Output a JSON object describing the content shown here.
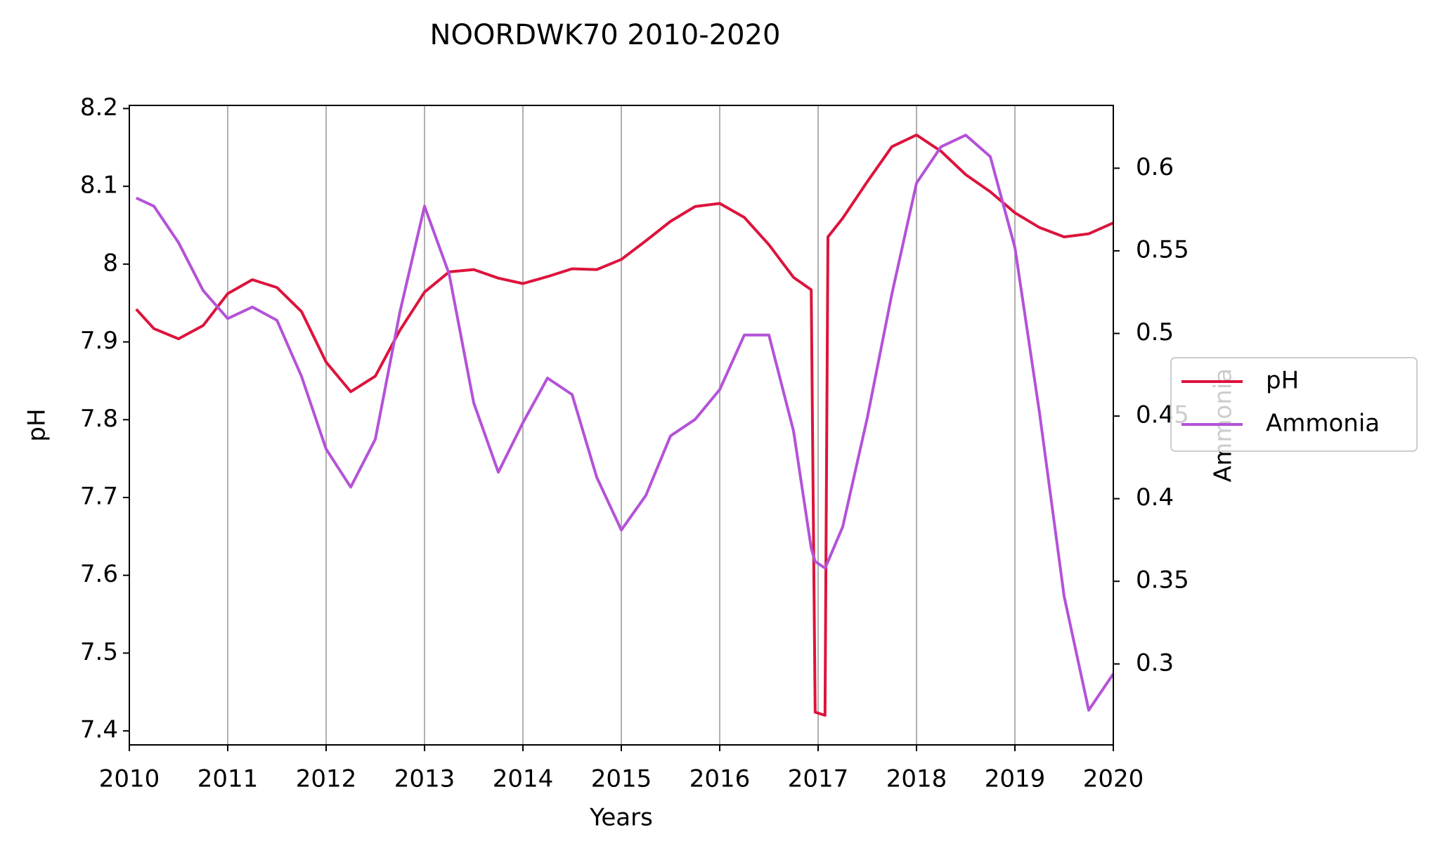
{
  "chart_data": {
    "type": "line",
    "title": "NOORDWK70 2010-2020",
    "x_label": "Years",
    "y_label": "pH",
    "y2_label": "Ammonia",
    "x": [
      2010.07,
      2010.25,
      2010.5,
      2010.75,
      2011.0,
      2011.25,
      2011.5,
      2011.75,
      2012.0,
      2012.25,
      2012.5,
      2012.75,
      2013.0,
      2013.25,
      2013.5,
      2013.75,
      2014.0,
      2014.25,
      2014.5,
      2014.75,
      2015.0,
      2015.25,
      2015.5,
      2015.75,
      2016.0,
      2016.25,
      2016.5,
      2016.75,
      2016.93,
      2016.97,
      2017.07,
      2017.1,
      2017.25,
      2017.5,
      2017.75,
      2018.0,
      2018.25,
      2018.5,
      2018.75,
      2019.0,
      2019.25,
      2019.5,
      2019.75,
      2020.0
    ],
    "series": [
      {
        "name": "pH",
        "color": "#dc143c",
        "axis": "y",
        "values": [
          7.942,
          7.917,
          7.904,
          7.921,
          7.962,
          7.98,
          7.97,
          7.939,
          7.874,
          7.836,
          7.856,
          7.915,
          7.964,
          7.99,
          7.993,
          7.982,
          7.975,
          7.984,
          7.994,
          7.993,
          8.006,
          8.03,
          8.055,
          8.074,
          8.078,
          8.06,
          8.025,
          7.983,
          7.967,
          7.424,
          7.42,
          8.035,
          8.059,
          8.106,
          8.151,
          8.166,
          8.145,
          8.115,
          8.093,
          8.066,
          8.047,
          8.035,
          8.039,
          8.053
        ]
      },
      {
        "name": "Ammonia",
        "color": "#b452d8",
        "axis": "y2",
        "values": [
          0.582,
          0.577,
          0.555,
          0.526,
          0.509,
          0.516,
          0.508,
          0.474,
          0.43,
          0.407,
          0.436,
          0.513,
          0.577,
          0.536,
          0.458,
          0.416,
          0.446,
          0.473,
          0.463,
          0.413,
          0.381,
          0.402,
          0.438,
          0.448,
          0.466,
          0.499,
          0.499,
          0.441,
          0.37,
          0.362,
          0.358,
          0.362,
          0.383,
          0.449,
          0.524,
          0.591,
          0.613,
          0.62,
          0.607,
          0.552,
          0.452,
          0.341,
          0.272,
          0.294
        ]
      }
    ],
    "xlim": [
      2010,
      2020
    ],
    "xticks": [
      2010,
      2011,
      2012,
      2013,
      2014,
      2015,
      2016,
      2017,
      2018,
      2019,
      2020
    ],
    "ylim": [
      7.382,
      8.204
    ],
    "yticks": [
      7.4,
      7.5,
      7.6,
      7.7,
      7.8,
      7.9,
      8.0,
      8.1,
      8.2
    ],
    "y2lim": [
      0.251,
      0.638
    ],
    "y2ticks": [
      0.3,
      0.35,
      0.4,
      0.45,
      0.5,
      0.55,
      0.6
    ],
    "grid": "x",
    "legend": "right"
  }
}
